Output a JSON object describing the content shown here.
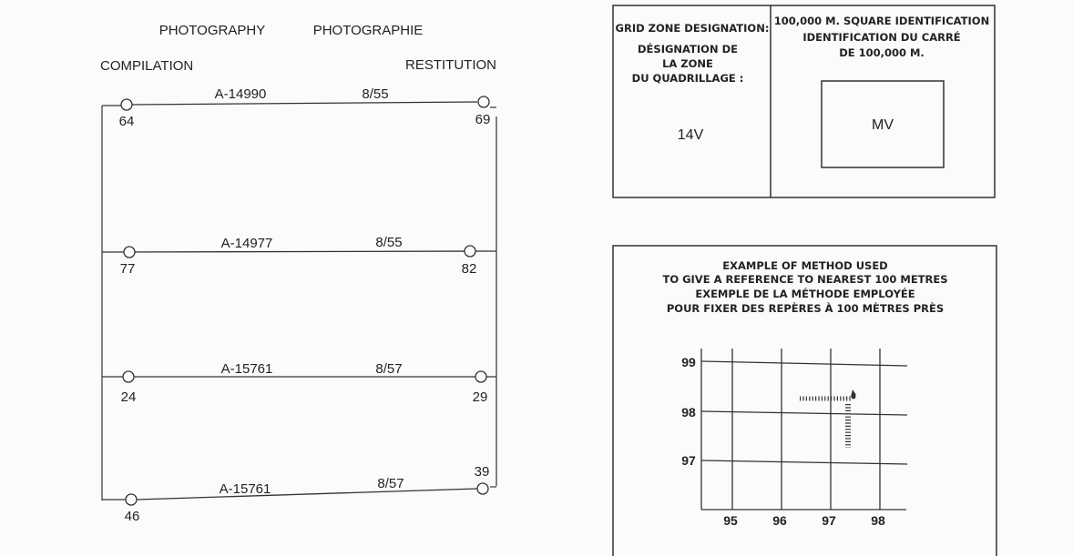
{
  "photography": {
    "title_en": "PHOTOGRAPHY",
    "title_fr": "PHOTOGRAPHIE",
    "compilation": "COMPILATION",
    "restitution": "RESTITUTION",
    "flight_lines": [
      {
        "roll": "A-14990",
        "date": "8/55",
        "start_photo": "64",
        "end_photo": "69"
      },
      {
        "roll": "A-14977",
        "date": "8/55",
        "start_photo": "77",
        "end_photo": "82"
      },
      {
        "roll": "A-15761",
        "date": "8/57",
        "start_photo": "24",
        "end_photo": "29"
      },
      {
        "roll": "A-15761",
        "date": "8/57",
        "start_photo": "46",
        "end_photo": "39"
      }
    ]
  },
  "grid_zone": {
    "label_en": "GRID ZONE DESIGNATION:",
    "label_fr_1": "DÉSIGNATION DE",
    "label_fr_2": "LA ZONE",
    "label_fr_3": "DU QUADRILLAGE :",
    "value": "14V"
  },
  "square_id": {
    "label_en": "100,000 M. SQUARE IDENTIFICATION",
    "label_fr_1": "IDENTIFICATION DU CARRÉ",
    "label_fr_2": "DE 100,000 M.",
    "value": "MV"
  },
  "reference_example": {
    "line_1": "EXAMPLE OF METHOD USED",
    "line_2": "TO GIVE A REFERENCE TO NEAREST 100 METRES",
    "line_3": "EXEMPLE DE LA MÉTHODE EMPLOYÉE",
    "line_4": "POUR FIXER DES REPÈRES À 100 MÈTRES PRÈS",
    "eastings": [
      "95",
      "96",
      "97",
      "98"
    ],
    "northings": [
      "99",
      "98",
      "97"
    ]
  }
}
